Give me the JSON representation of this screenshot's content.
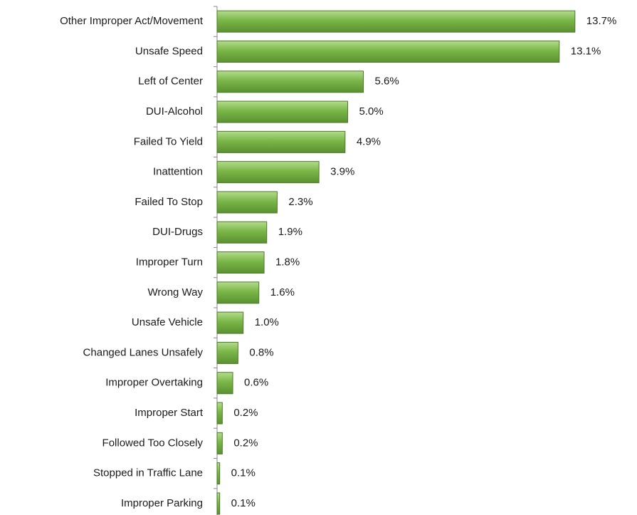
{
  "chart_data": {
    "type": "bar",
    "orientation": "horizontal",
    "categories": [
      "Other Improper Act/Movement",
      "Unsafe Speed",
      "Left of Center",
      "DUI-Alcohol",
      "Failed To Yield",
      "Inattention",
      "Failed To Stop",
      "DUI-Drugs",
      "Improper Turn",
      "Wrong Way",
      "Unsafe Vehicle",
      "Changed Lanes Unsafely",
      "Improper Overtaking",
      "Improper Start",
      "Followed Too Closely",
      "Stopped in Traffic Lane",
      "Improper Parking"
    ],
    "values": [
      13.7,
      13.1,
      5.6,
      5.0,
      4.9,
      3.9,
      2.3,
      1.9,
      1.8,
      1.6,
      1.0,
      0.8,
      0.6,
      0.2,
      0.2,
      0.1,
      0.1
    ],
    "value_labels": [
      "13.7%",
      "13.1%",
      "5.6%",
      "5.0%",
      "4.9%",
      "3.9%",
      "2.3%",
      "1.9%",
      "1.8%",
      "1.6%",
      "1.0%",
      "0.8%",
      "0.6%",
      "0.2%",
      "0.2%",
      "0.1%",
      "0.1%"
    ],
    "color": "#7ab648"
  }
}
